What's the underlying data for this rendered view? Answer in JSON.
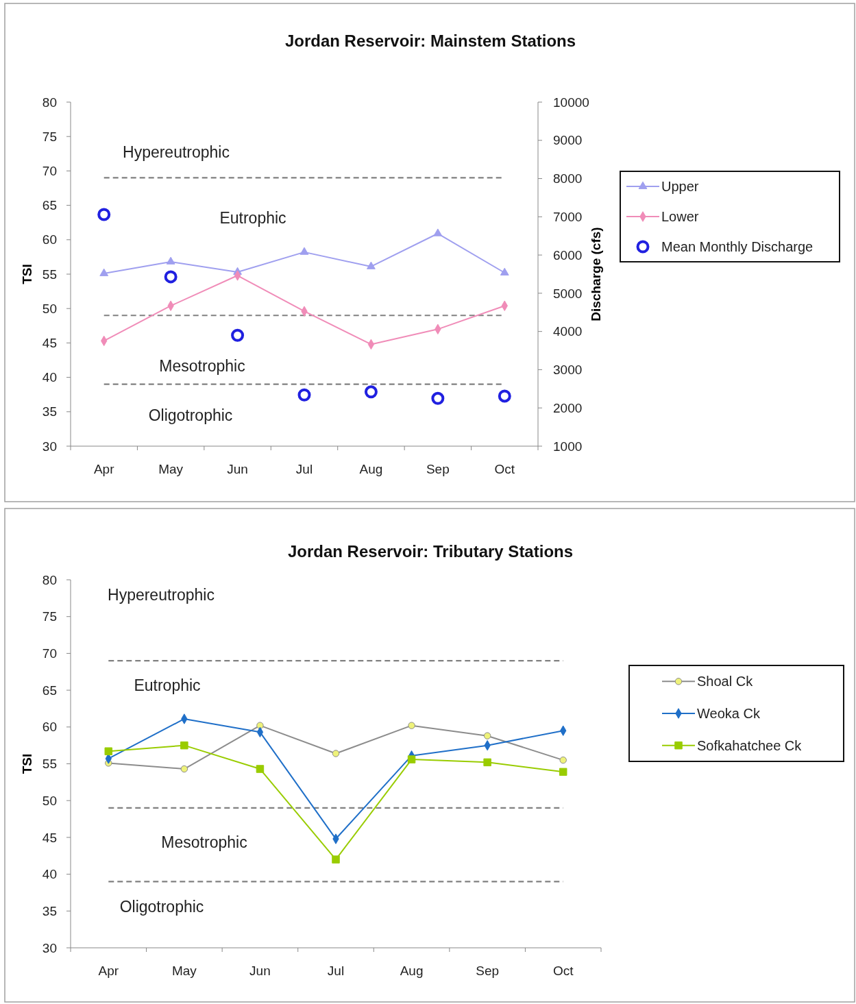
{
  "chart_data": [
    {
      "type": "line",
      "title": "Jordan Reservoir: Mainstem Stations",
      "ylabel": "TSI",
      "y2label": "Discharge (cfs)",
      "categories": [
        "Apr",
        "May",
        "Jun",
        "Jul",
        "Aug",
        "Sep",
        "Oct"
      ],
      "series": [
        {
          "name": "Upper",
          "color": "#9f9fef",
          "marker": "triangle",
          "values": [
            55.1,
            56.8,
            55.3,
            58.2,
            56.1,
            60.9,
            55.2
          ]
        },
        {
          "name": "Lower",
          "color": "#f08cb8",
          "marker": "diamond",
          "values": [
            45.3,
            50.4,
            54.8,
            49.6,
            44.8,
            47.0,
            50.4
          ]
        },
        {
          "name": "Mean Monthly Discharge",
          "type": "scatter",
          "axis": "y2",
          "color": "#2020e0",
          "marker": "circle",
          "values": [
            7060,
            5430,
            3900,
            2340,
            2420,
            2250,
            2310
          ]
        }
      ],
      "ylim": [
        30,
        80
      ],
      "yticks": [
        30,
        35,
        40,
        45,
        50,
        55,
        60,
        65,
        70,
        75,
        80
      ],
      "y2lim": [
        1000,
        10000
      ],
      "y2ticks": [
        1000,
        2000,
        3000,
        4000,
        5000,
        6000,
        7000,
        8000,
        9000,
        10000
      ],
      "ref_lines": [
        {
          "axis": "y",
          "value": 69,
          "color": "#808080",
          "line_style": "dashed"
        },
        {
          "axis": "y",
          "value": 49,
          "color": "#808080",
          "line_style": "dashed"
        },
        {
          "axis": "y",
          "value": 39,
          "color": "#808080",
          "line_style": "dashed"
        }
      ],
      "annotations": [
        "Hypereutrophic",
        "Eutrophic",
        "Mesotrophic",
        "Oligotrophic"
      ],
      "legend": "right",
      "grid": false
    },
    {
      "type": "line",
      "title": "Jordan Reservoir: Tributary Stations",
      "ylabel": "TSI",
      "categories": [
        "Apr",
        "May",
        "Jun",
        "Jul",
        "Aug",
        "Sep",
        "Oct"
      ],
      "series": [
        {
          "name": "Shoal Ck",
          "color": "#8c8c8c",
          "marker": "circle",
          "values": [
            55.1,
            54.3,
            60.2,
            56.4,
            60.2,
            58.8,
            55.5
          ]
        },
        {
          "name": "Weoka Ck",
          "color": "#1f6fc8",
          "marker": "diamond",
          "values": [
            55.7,
            61.1,
            59.3,
            44.8,
            56.1,
            57.5,
            59.5
          ]
        },
        {
          "name": "Sofkahatchee Ck",
          "color": "#99cc00",
          "marker": "square",
          "values": [
            56.7,
            57.5,
            54.3,
            42.0,
            55.6,
            55.2,
            53.9
          ]
        }
      ],
      "ylim": [
        30,
        80
      ],
      "yticks": [
        30,
        35,
        40,
        45,
        50,
        55,
        60,
        65,
        70,
        75,
        80
      ],
      "ref_lines": [
        {
          "axis": "y",
          "value": 69,
          "color": "#808080",
          "line_style": "dashed"
        },
        {
          "axis": "y",
          "value": 49,
          "color": "#808080",
          "line_style": "dashed"
        },
        {
          "axis": "y",
          "value": 39,
          "color": "#808080",
          "line_style": "dashed"
        }
      ],
      "annotations": [
        "Hypereutrophic",
        "Eutrophic",
        "Mesotrophic",
        "Oligotrophic"
      ],
      "legend": "right",
      "grid": false
    }
  ]
}
